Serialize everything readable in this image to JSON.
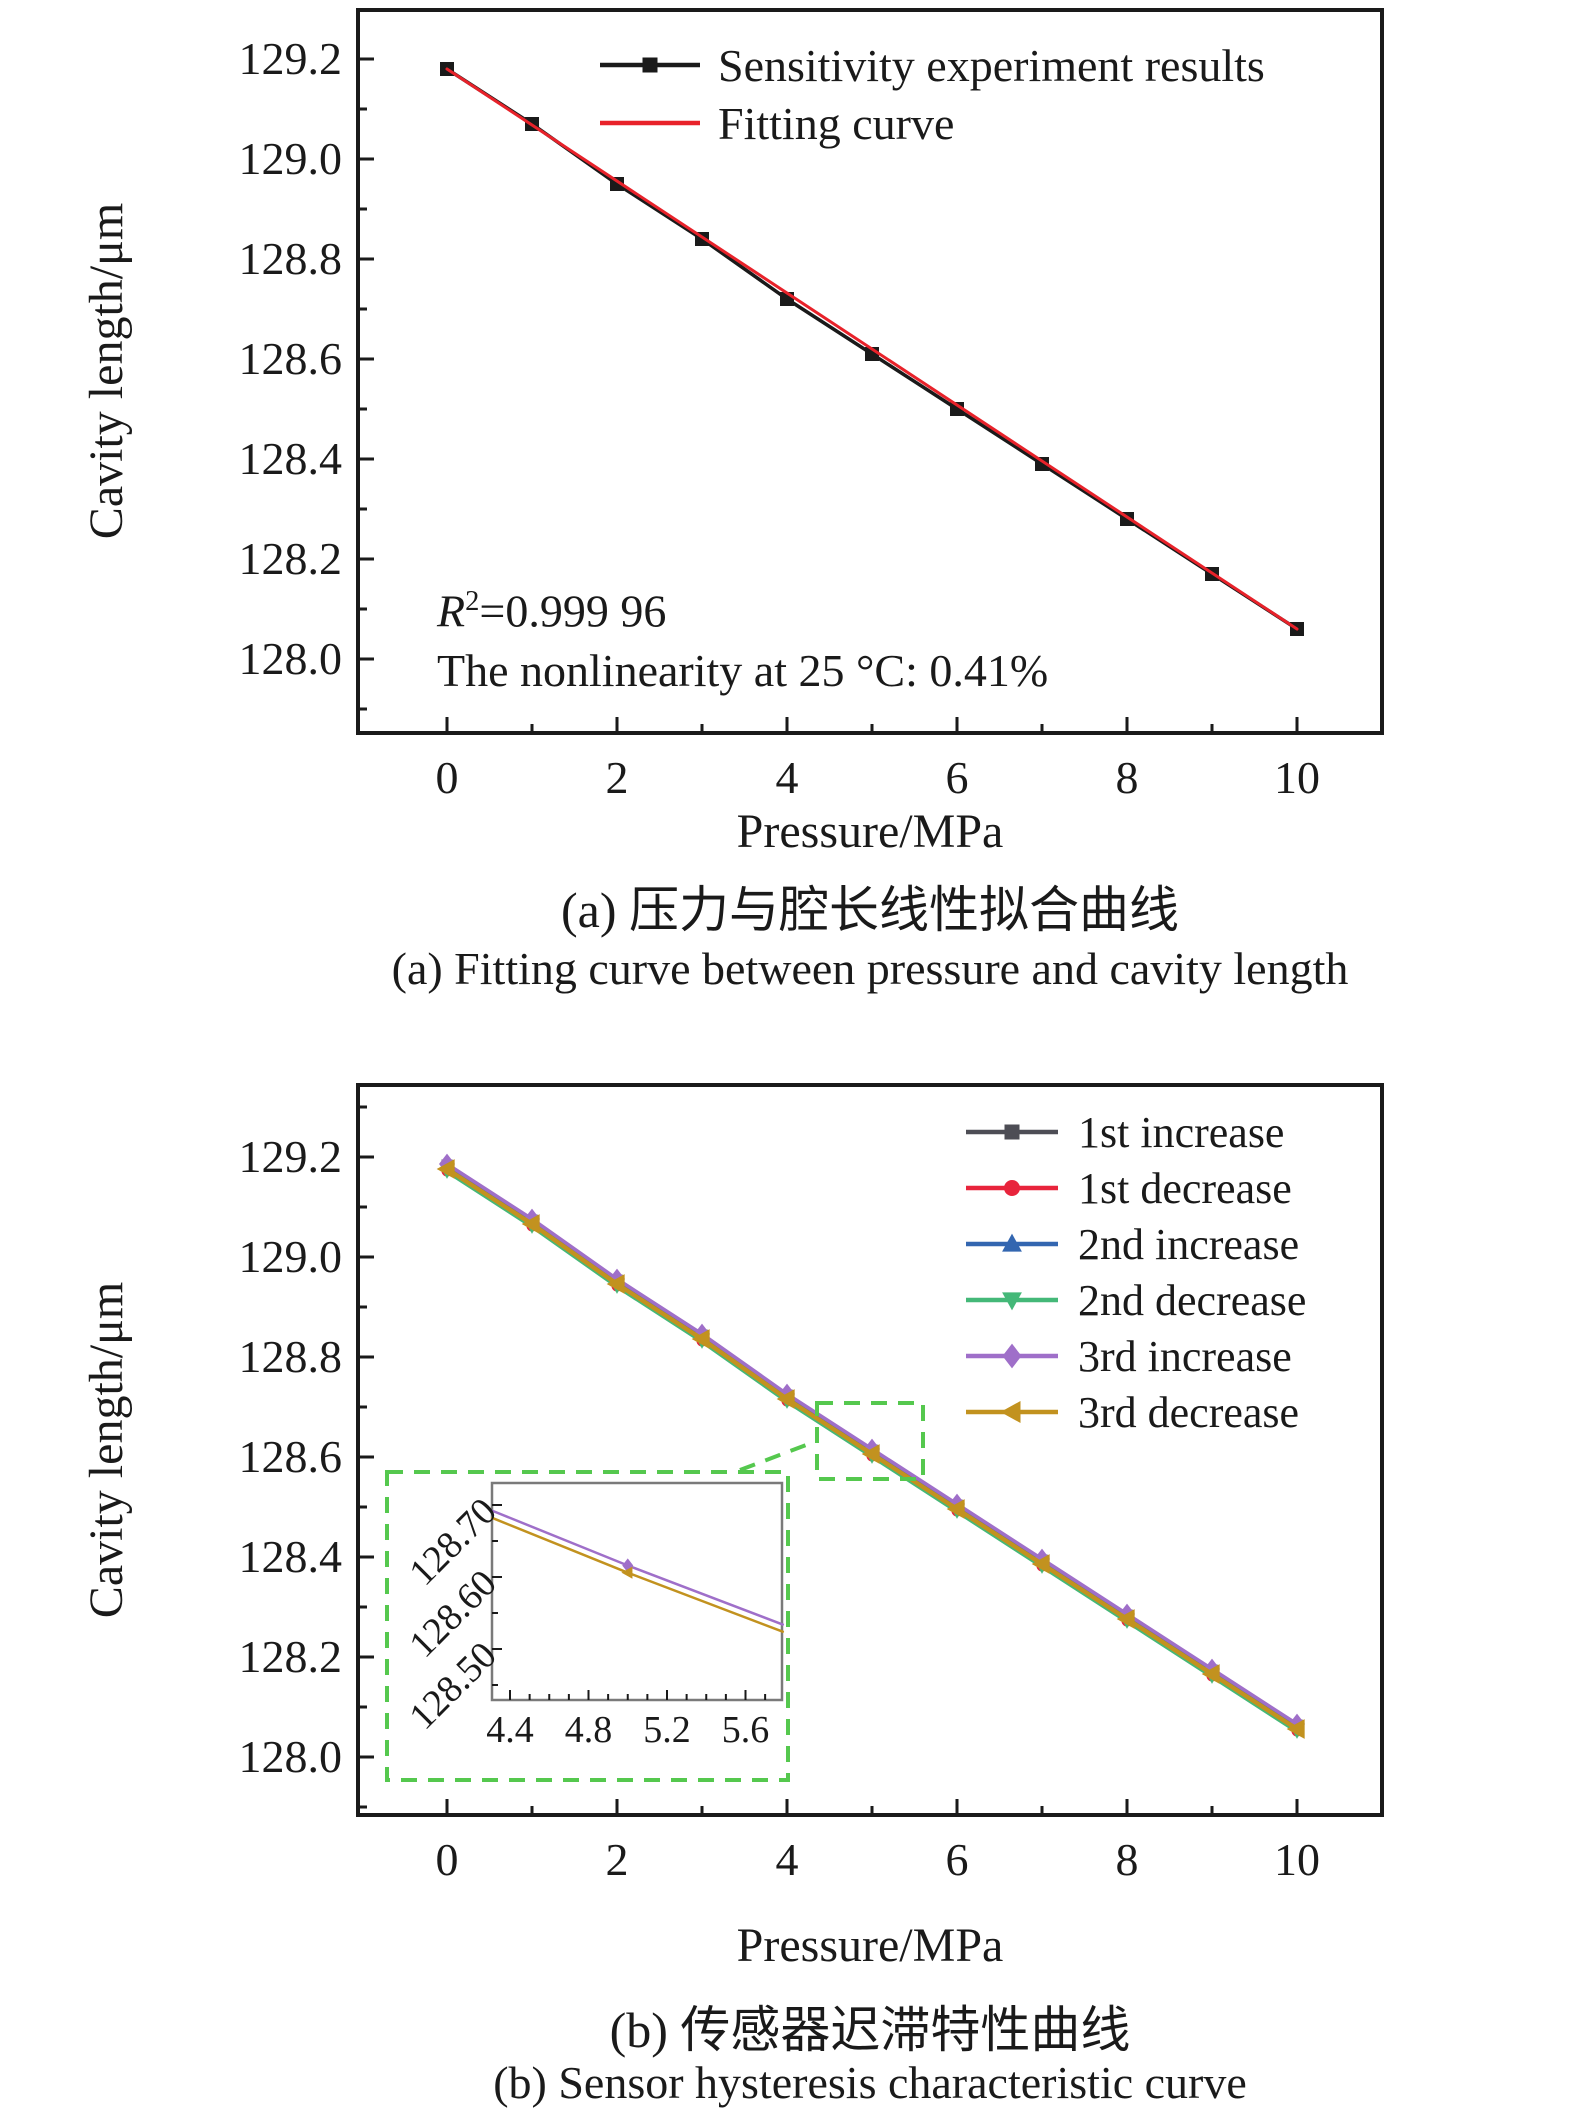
{
  "colors": {
    "black": "#1a1a1a",
    "fit_red": "#e8222a",
    "green_dash": "#55c84e",
    "inset_frame": "#7a7a7a",
    "series": {
      "first_increase": "#4d4d55",
      "first_decrease": "#e8243c",
      "second_increase": "#3366b0",
      "second_decrease": "#44b878",
      "third_increase": "#9f6fc9",
      "third_decrease": "#c2921f"
    }
  },
  "panel_a": {
    "ylabel": "Cavity length/μm",
    "xlabel": "Pressure/MPa",
    "ytick_labels": [
      "129.2",
      "129.0",
      "128.8",
      "128.6",
      "128.4",
      "128.2",
      "128.0"
    ],
    "xtick_labels": [
      "0",
      "2",
      "4",
      "6",
      "8",
      "10"
    ],
    "legend": [
      {
        "label": "Sensitivity experiment results",
        "marker": "square",
        "color": "#1a1a1a"
      },
      {
        "label": "Fitting curve",
        "marker": "none",
        "color": "#e8222a"
      }
    ],
    "annotation": {
      "r": "R",
      "sup": "2",
      "value": "=0.999 96",
      "line2": "The nonlinearity at 25 °C: 0.41%"
    },
    "caption_zh": "(a) 压力与腔长线性拟合曲线",
    "caption_en": "(a) Fitting curve between pressure and cavity length"
  },
  "panel_b": {
    "ylabel": "Cavity length/μm",
    "xlabel": "Pressure/MPa",
    "ytick_labels": [
      "129.2",
      "129.0",
      "128.8",
      "128.6",
      "128.4",
      "128.2",
      "128.0"
    ],
    "xtick_labels": [
      "0",
      "2",
      "4",
      "6",
      "8",
      "10"
    ],
    "legend": [
      {
        "label": "1st increase",
        "marker": "square",
        "color": "#4d4d55"
      },
      {
        "label": "1st decrease",
        "marker": "circle",
        "color": "#e8243c"
      },
      {
        "label": "2nd increase",
        "marker": "triangle-up",
        "color": "#3366b0"
      },
      {
        "label": "2nd decrease",
        "marker": "triangle-down",
        "color": "#44b878"
      },
      {
        "label": "3rd increase",
        "marker": "diamond",
        "color": "#9f6fc9"
      },
      {
        "label": "3rd decrease",
        "marker": "triangle-left",
        "color": "#c2921f"
      }
    ],
    "inset": {
      "xtick_labels": [
        "4.4",
        "4.8",
        "5.2",
        "5.6"
      ],
      "ytick_labels": [
        "128.70",
        "128.60",
        "128.50"
      ]
    },
    "caption_zh": "(b) 传感器迟滞特性曲线",
    "caption_en": "(b) Sensor hysteresis characteristic curve"
  },
  "chart_data": [
    {
      "panel": "a",
      "type": "line",
      "title": "(a) Fitting curve between pressure and cavity length",
      "xlabel": "Pressure/MPa",
      "ylabel": "Cavity length/μm",
      "xlim": [
        -1,
        11
      ],
      "ylim": [
        127.85,
        129.3
      ],
      "xticks": [
        0,
        2,
        4,
        6,
        8,
        10
      ],
      "yticks": [
        128.0,
        128.2,
        128.4,
        128.6,
        128.8,
        129.0,
        129.2
      ],
      "x": [
        0,
        1,
        2,
        3,
        4,
        5,
        6,
        7,
        8,
        9,
        10
      ],
      "series": [
        {
          "name": "Sensitivity experiment results",
          "marker": "square",
          "color": "#1a1a1a",
          "lw": 3.5,
          "msize": 14,
          "values": [
            129.18,
            129.07,
            128.95,
            128.84,
            128.72,
            128.61,
            128.5,
            128.39,
            128.28,
            128.17,
            128.06
          ]
        },
        {
          "name": "Fitting curve",
          "marker": "none",
          "color": "#e8222a",
          "lw": 3,
          "x": [
            0,
            10
          ],
          "values": [
            129.18,
            128.06
          ]
        }
      ],
      "annotations": [
        "R²=0.999 96",
        "The nonlinearity at 25 °C: 0.41%"
      ],
      "r_squared": 0.99996,
      "nonlinearity_percent_at_25C": 0.41,
      "legend_position": "upper right",
      "grid": false
    },
    {
      "panel": "b",
      "type": "line",
      "title": "(b) Sensor hysteresis characteristic curve",
      "xlabel": "Pressure/MPa",
      "ylabel": "Cavity length/μm",
      "xlim": [
        -1,
        11
      ],
      "ylim": [
        127.88,
        129.34
      ],
      "xticks": [
        0,
        2,
        4,
        6,
        8,
        10
      ],
      "yticks": [
        128.0,
        128.2,
        128.4,
        128.6,
        128.8,
        129.0,
        129.2
      ],
      "x": [
        0,
        1,
        2,
        3,
        4,
        5,
        6,
        7,
        8,
        9,
        10
      ],
      "series": [
        {
          "name": "1st increase",
          "marker": "square",
          "color": "#4d4d55",
          "lw": 3,
          "msize": 11,
          "values": [
            129.184,
            129.074,
            128.954,
            128.844,
            128.724,
            128.614,
            128.504,
            128.394,
            128.284,
            128.174,
            128.064
          ]
        },
        {
          "name": "1st decrease",
          "marker": "circle",
          "color": "#e8243c",
          "lw": 3,
          "msize": 11,
          "values": [
            129.172,
            129.062,
            128.942,
            128.832,
            128.712,
            128.602,
            128.492,
            128.382,
            128.272,
            128.162,
            128.052
          ]
        },
        {
          "name": "2nd increase",
          "marker": "triangle-up",
          "color": "#3366b0",
          "lw": 3,
          "msize": 12,
          "values": [
            129.182,
            129.072,
            128.952,
            128.842,
            128.722,
            128.612,
            128.502,
            128.392,
            128.282,
            128.172,
            128.062
          ]
        },
        {
          "name": "2nd decrease",
          "marker": "triangle-down",
          "color": "#44b878",
          "lw": 3,
          "msize": 12,
          "values": [
            129.17,
            129.06,
            128.94,
            128.83,
            128.71,
            128.6,
            128.49,
            128.38,
            128.27,
            128.16,
            128.05
          ]
        },
        {
          "name": "3rd increase",
          "marker": "diamond",
          "color": "#9f6fc9",
          "lw": 3.5,
          "msize": 16,
          "values": [
            129.186,
            129.076,
            128.956,
            128.846,
            128.726,
            128.616,
            128.506,
            128.396,
            128.286,
            128.176,
            128.066
          ]
        },
        {
          "name": "3rd decrease",
          "marker": "triangle-left",
          "color": "#c2921f",
          "lw": 4.5,
          "msize": 18,
          "values": [
            129.176,
            129.066,
            128.946,
            128.836,
            128.716,
            128.606,
            128.496,
            128.386,
            128.276,
            128.166,
            128.056
          ]
        }
      ],
      "legend_position": "upper right",
      "grid": false
    },
    {
      "panel": "b_inset",
      "type": "line",
      "xlim": [
        4.31,
        5.79
      ],
      "ylim": [
        128.43,
        128.73
      ],
      "xticks": [
        4.4,
        4.8,
        5.2,
        5.6
      ],
      "yticks": [
        128.5,
        128.6,
        128.7
      ],
      "marker_point_x": 5,
      "series": [
        {
          "name": "3rd increase",
          "marker": "diamond",
          "color": "#9f6fc9",
          "lw": 2.5,
          "msize": 11,
          "x": [
            4.31,
            5.0,
            5.79
          ],
          "values": [
            128.692,
            128.616,
            128.534
          ]
        },
        {
          "name": "3rd decrease",
          "marker": "triangle-left",
          "color": "#c2921f",
          "lw": 2.5,
          "msize": 11,
          "x": [
            4.31,
            5.0,
            5.79
          ],
          "values": [
            128.682,
            128.606,
            128.524
          ]
        }
      ],
      "grid": false
    }
  ]
}
